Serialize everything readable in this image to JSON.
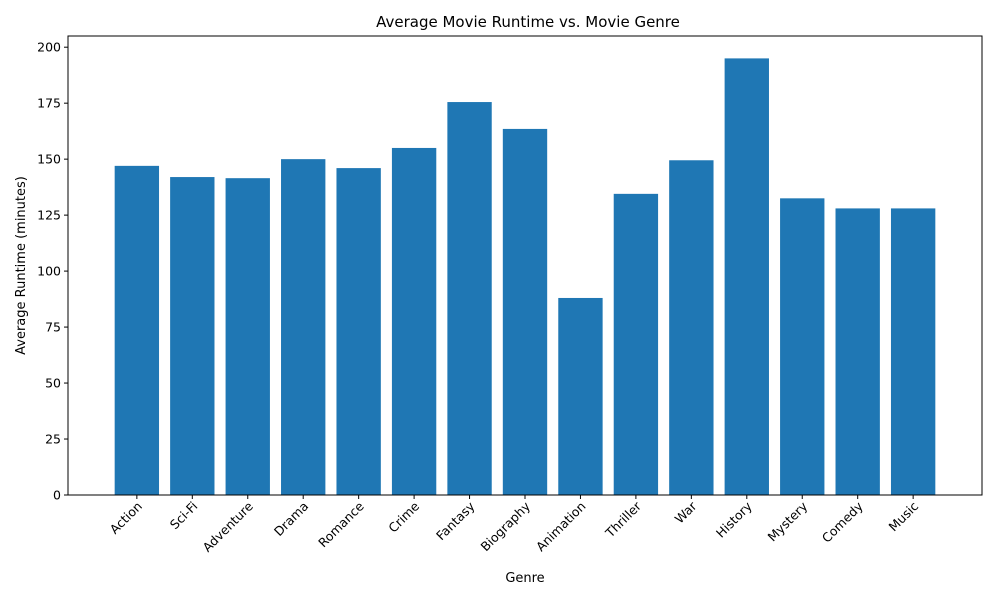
{
  "chart_data": {
    "type": "bar",
    "title": "Average Movie Runtime vs. Movie Genre",
    "xlabel": "Genre",
    "ylabel": "Average Runtime (minutes)",
    "categories": [
      "Action",
      "Sci-Fi",
      "Adventure",
      "Drama",
      "Romance",
      "Crime",
      "Fantasy",
      "Biography",
      "Animation",
      "Thriller",
      "War",
      "History",
      "Mystery",
      "Comedy",
      "Music"
    ],
    "values": [
      147,
      142,
      141.5,
      150,
      146,
      155,
      175.5,
      163.5,
      88,
      134.5,
      149.5,
      195,
      132.5,
      128,
      128
    ],
    "ylim": [
      0,
      205
    ],
    "yticks": [
      0,
      25,
      50,
      75,
      100,
      125,
      150,
      175,
      200
    ],
    "bar_color": "#1f77b4",
    "grid": false,
    "legend": "none"
  }
}
